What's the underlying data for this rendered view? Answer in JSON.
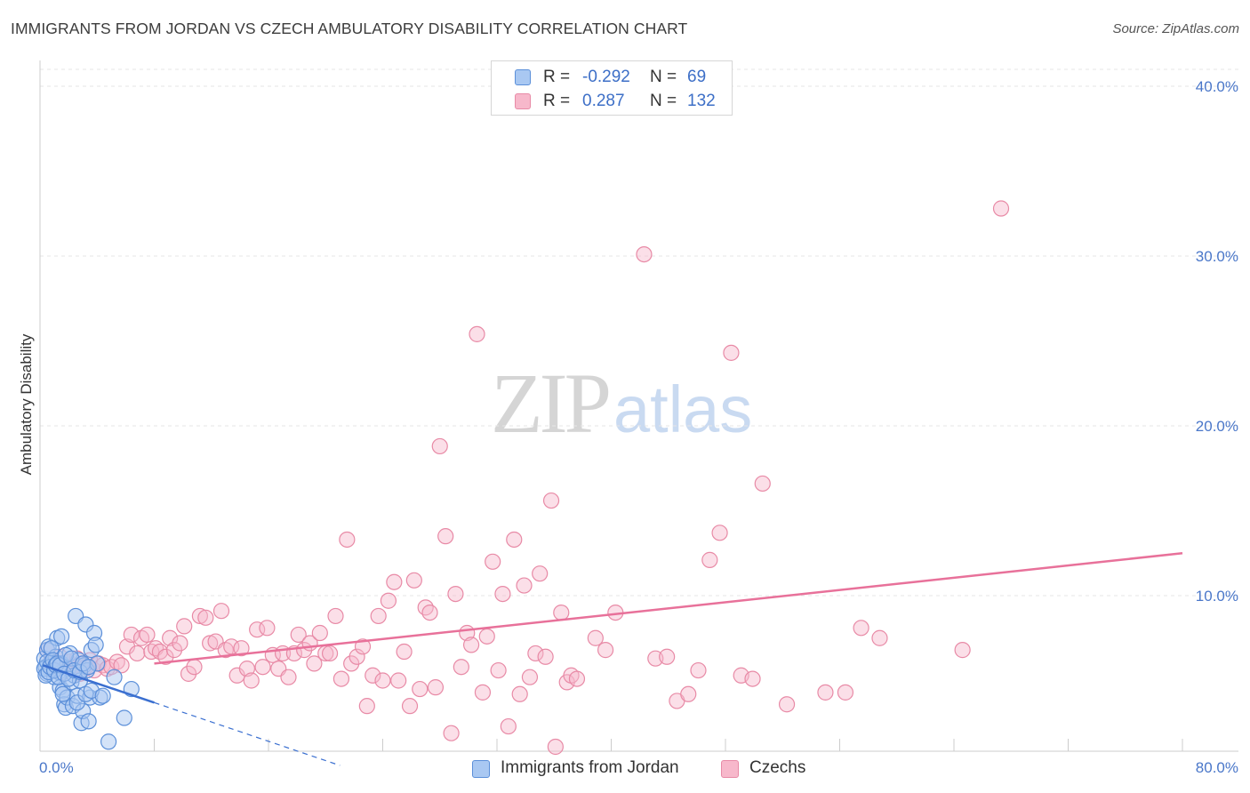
{
  "title": "IMMIGRANTS FROM JORDAN VS CZECH AMBULATORY DISABILITY CORRELATION CHART",
  "source": "Source: ZipAtlas.com",
  "watermark": {
    "part1": "ZIP",
    "part2": "atlas"
  },
  "colors": {
    "blue_fill": "#a9c8f2",
    "blue_stroke": "#5b8fd9",
    "blue_line": "#3a6fd0",
    "pink_fill": "#f7b8cb",
    "pink_stroke": "#e88aa6",
    "pink_line": "#e8719a",
    "tick_text": "#4a77c9",
    "grid": "#e6e6e6"
  },
  "legend_top": {
    "rows": [
      {
        "r_label": "R =",
        "r_value": "-0.292",
        "n_label": "N =",
        "n_value": "69"
      },
      {
        "r_label": "R =",
        "r_value": "0.287",
        "n_label": "N =",
        "n_value": "132"
      }
    ]
  },
  "legend_bottom": [
    {
      "label": "Immigrants from Jordan"
    },
    {
      "label": "Czechs"
    }
  ],
  "chart_data": {
    "type": "scatter",
    "title": "IMMIGRANTS FROM JORDAN VS CZECH AMBULATORY DISABILITY CORRELATION CHART",
    "xlabel": "",
    "ylabel": "Ambulatory Disability",
    "xlim": [
      0,
      80
    ],
    "ylim": [
      0,
      40.0
    ],
    "x_tick_labels": [
      "0.0%",
      "80.0%"
    ],
    "y_ticks": [
      10,
      20,
      30,
      40
    ],
    "y_tick_labels": [
      "10.0%",
      "20.0%",
      "30.0%",
      "40.0%"
    ],
    "grid": "horizontal dashed",
    "legend_placement": "bottom",
    "series": [
      {
        "name": "Immigrants from Jordan",
        "r": -0.292,
        "n": 69,
        "trend": {
          "x0": 0.2,
          "y0": 5.9,
          "x1": 8.0,
          "y1": 3.7,
          "dash_to_x": 21.0,
          "dash_to_y": 0.0
        },
        "points": [
          [
            0.3,
            6.3
          ],
          [
            0.4,
            5.8
          ],
          [
            0.5,
            5.4
          ],
          [
            0.5,
            6.8
          ],
          [
            0.6,
            7.0
          ],
          [
            0.7,
            5.9
          ],
          [
            0.8,
            6.1
          ],
          [
            0.9,
            5.6
          ],
          [
            1.0,
            5.2
          ],
          [
            1.1,
            6.4
          ],
          [
            1.2,
            7.5
          ],
          [
            1.3,
            5.5
          ],
          [
            1.4,
            4.6
          ],
          [
            1.5,
            6.0
          ],
          [
            1.6,
            4.4
          ],
          [
            1.7,
            3.6
          ],
          [
            1.8,
            3.4
          ],
          [
            1.9,
            4.0
          ],
          [
            2.0,
            5.7
          ],
          [
            2.1,
            6.6
          ],
          [
            2.2,
            4.9
          ],
          [
            2.3,
            3.5
          ],
          [
            2.4,
            5.3
          ],
          [
            2.5,
            8.8
          ],
          [
            2.6,
            4.1
          ],
          [
            2.7,
            6.2
          ],
          [
            2.8,
            5.0
          ],
          [
            2.9,
            2.5
          ],
          [
            3.0,
            3.2
          ],
          [
            3.1,
            5.9
          ],
          [
            3.2,
            8.3
          ],
          [
            3.3,
            5.6
          ],
          [
            3.4,
            2.6
          ],
          [
            3.5,
            4.0
          ],
          [
            3.6,
            6.8
          ],
          [
            3.8,
            7.8
          ],
          [
            3.9,
            7.1
          ],
          [
            4.0,
            6.0
          ],
          [
            4.2,
            4.0
          ],
          [
            0.3,
            5.7
          ],
          [
            0.4,
            5.3
          ],
          [
            0.5,
            6.1
          ],
          [
            0.6,
            5.5
          ],
          [
            0.7,
            5.8
          ],
          [
            0.8,
            6.9
          ],
          [
            0.9,
            6.2
          ],
          [
            1.0,
            5.6
          ],
          [
            1.1,
            5.9
          ],
          [
            1.2,
            6.0
          ],
          [
            1.3,
            5.2
          ],
          [
            1.4,
            5.9
          ],
          [
            1.5,
            7.6
          ],
          [
            1.6,
            4.2
          ],
          [
            1.7,
            5.4
          ],
          [
            1.8,
            6.5
          ],
          [
            2.0,
            5.1
          ],
          [
            2.2,
            6.3
          ],
          [
            2.4,
            5.6
          ],
          [
            2.6,
            3.7
          ],
          [
            2.8,
            5.5
          ],
          [
            3.0,
            6.0
          ],
          [
            3.2,
            4.2
          ],
          [
            3.4,
            5.8
          ],
          [
            3.6,
            4.4
          ],
          [
            4.4,
            4.1
          ],
          [
            5.2,
            5.2
          ],
          [
            5.9,
            2.8
          ],
          [
            6.4,
            4.5
          ],
          [
            4.8,
            1.4
          ]
        ]
      },
      {
        "name": "Czechs",
        "r": 0.287,
        "n": 132,
        "trend": {
          "x0": 8.0,
          "y0": 6.0,
          "x1": 80.0,
          "y1": 12.5
        },
        "points": [
          [
            0.5,
            6.8
          ],
          [
            0.8,
            6.2
          ],
          [
            1.0,
            5.6
          ],
          [
            1.2,
            5.9
          ],
          [
            1.4,
            6.4
          ],
          [
            1.6,
            5.5
          ],
          [
            1.8,
            5.8
          ],
          [
            2.0,
            6.1
          ],
          [
            2.2,
            5.7
          ],
          [
            2.4,
            5.9
          ],
          [
            2.6,
            6.3
          ],
          [
            2.8,
            5.4
          ],
          [
            3.0,
            6.0
          ],
          [
            3.2,
            5.8
          ],
          [
            3.5,
            6.2
          ],
          [
            3.8,
            5.6
          ],
          [
            4.1,
            6.0
          ],
          [
            4.4,
            5.9
          ],
          [
            4.7,
            5.7
          ],
          [
            5.0,
            5.8
          ],
          [
            5.4,
            6.1
          ],
          [
            5.7,
            5.9
          ],
          [
            6.1,
            7.0
          ],
          [
            6.4,
            7.7
          ],
          [
            6.8,
            6.6
          ],
          [
            7.1,
            7.5
          ],
          [
            7.5,
            7.7
          ],
          [
            7.8,
            6.7
          ],
          [
            8.1,
            6.9
          ],
          [
            8.4,
            6.7
          ],
          [
            8.8,
            6.4
          ],
          [
            9.1,
            7.5
          ],
          [
            9.4,
            6.8
          ],
          [
            9.8,
            7.2
          ],
          [
            10.1,
            8.2
          ],
          [
            10.4,
            5.4
          ],
          [
            10.8,
            5.8
          ],
          [
            11.2,
            8.8
          ],
          [
            11.6,
            8.7
          ],
          [
            11.9,
            7.2
          ],
          [
            12.3,
            7.3
          ],
          [
            12.7,
            9.1
          ],
          [
            13.0,
            6.8
          ],
          [
            13.4,
            7.0
          ],
          [
            13.8,
            5.3
          ],
          [
            14.1,
            6.9
          ],
          [
            14.5,
            5.7
          ],
          [
            14.8,
            5.0
          ],
          [
            15.2,
            8.0
          ],
          [
            15.6,
            5.8
          ],
          [
            15.9,
            8.1
          ],
          [
            16.3,
            6.5
          ],
          [
            16.7,
            5.7
          ],
          [
            17.0,
            6.6
          ],
          [
            17.4,
            5.2
          ],
          [
            17.8,
            6.6
          ],
          [
            18.1,
            7.7
          ],
          [
            18.5,
            6.8
          ],
          [
            18.9,
            7.2
          ],
          [
            19.2,
            6.0
          ],
          [
            19.6,
            7.8
          ],
          [
            20.0,
            6.6
          ],
          [
            20.3,
            6.6
          ],
          [
            20.7,
            8.8
          ],
          [
            21.1,
            5.1
          ],
          [
            21.5,
            13.3
          ],
          [
            21.8,
            6.0
          ],
          [
            22.2,
            6.4
          ],
          [
            22.6,
            7.0
          ],
          [
            22.9,
            3.5
          ],
          [
            23.3,
            5.3
          ],
          [
            23.7,
            8.8
          ],
          [
            24.0,
            5.0
          ],
          [
            24.4,
            9.7
          ],
          [
            24.8,
            10.8
          ],
          [
            25.1,
            5.0
          ],
          [
            25.5,
            6.7
          ],
          [
            25.9,
            3.5
          ],
          [
            26.2,
            10.9
          ],
          [
            26.6,
            4.5
          ],
          [
            27.0,
            9.3
          ],
          [
            27.3,
            9.0
          ],
          [
            27.7,
            4.6
          ],
          [
            28.0,
            18.8
          ],
          [
            28.4,
            13.5
          ],
          [
            28.8,
            1.9
          ],
          [
            29.1,
            10.1
          ],
          [
            29.5,
            5.8
          ],
          [
            29.9,
            7.8
          ],
          [
            30.2,
            7.1
          ],
          [
            30.6,
            25.4
          ],
          [
            31.0,
            4.3
          ],
          [
            31.3,
            7.6
          ],
          [
            31.7,
            12.0
          ],
          [
            32.1,
            5.6
          ],
          [
            32.4,
            10.1
          ],
          [
            32.8,
            2.3
          ],
          [
            33.2,
            13.3
          ],
          [
            33.6,
            4.2
          ],
          [
            33.9,
            10.6
          ],
          [
            34.3,
            5.2
          ],
          [
            34.7,
            6.6
          ],
          [
            35.0,
            11.3
          ],
          [
            35.4,
            6.4
          ],
          [
            35.8,
            15.6
          ],
          [
            36.1,
            1.1
          ],
          [
            36.5,
            9.0
          ],
          [
            36.9,
            4.9
          ],
          [
            37.2,
            5.3
          ],
          [
            37.6,
            5.1
          ],
          [
            38.9,
            7.5
          ],
          [
            39.6,
            6.8
          ],
          [
            40.3,
            9.0
          ],
          [
            42.3,
            30.1
          ],
          [
            43.1,
            6.3
          ],
          [
            43.9,
            6.4
          ],
          [
            44.6,
            3.8
          ],
          [
            45.4,
            4.2
          ],
          [
            46.1,
            5.6
          ],
          [
            46.9,
            12.1
          ],
          [
            47.6,
            13.7
          ],
          [
            48.4,
            24.3
          ],
          [
            49.1,
            5.3
          ],
          [
            49.9,
            5.1
          ],
          [
            50.6,
            16.6
          ],
          [
            52.3,
            3.6
          ],
          [
            55.0,
            4.3
          ],
          [
            56.4,
            4.3
          ],
          [
            57.5,
            8.1
          ],
          [
            58.8,
            7.5
          ],
          [
            64.6,
            6.8
          ],
          [
            67.3,
            32.8
          ]
        ]
      }
    ]
  }
}
